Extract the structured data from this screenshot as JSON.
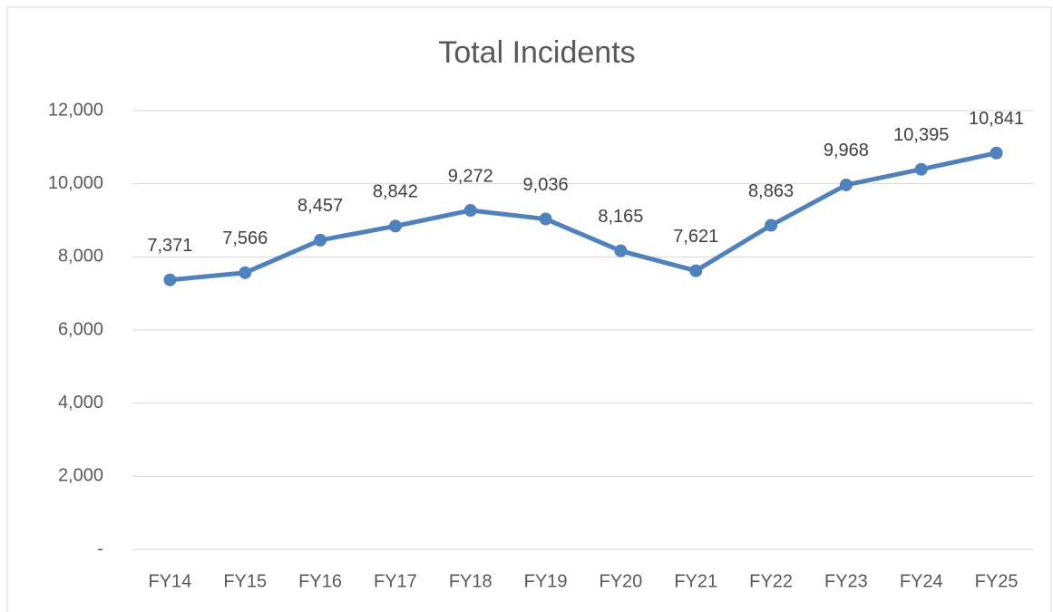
{
  "chart_data": {
    "type": "line",
    "title": "Total Incidents",
    "categories": [
      "FY14",
      "FY15",
      "FY16",
      "FY17",
      "FY18",
      "FY19",
      "FY20",
      "FY21",
      "FY22",
      "FY23",
      "FY24",
      "FY25"
    ],
    "series": [
      {
        "color": "#4f81bd",
        "values": [
          7371,
          7566,
          8457,
          8842,
          9272,
          9036,
          8165,
          7621,
          8863,
          9968,
          10395,
          10841
        ],
        "value_labels": [
          "7,371",
          "7,566",
          "8,457",
          "8,842",
          "9,272",
          "9,036",
          "8,165",
          "7,621",
          "8,863",
          "9,968",
          "10,395",
          "10,841"
        ]
      }
    ],
    "ylim": [
      0,
      12000
    ],
    "yticks": [
      {
        "value": 0,
        "label": "-"
      },
      {
        "value": 2000,
        "label": "2,000"
      },
      {
        "value": 4000,
        "label": "4,000"
      },
      {
        "value": 6000,
        "label": "6,000"
      },
      {
        "value": 8000,
        "label": "8,000"
      },
      {
        "value": 10000,
        "label": "10,000"
      },
      {
        "value": 12000,
        "label": "12,000"
      }
    ],
    "grid": true
  }
}
